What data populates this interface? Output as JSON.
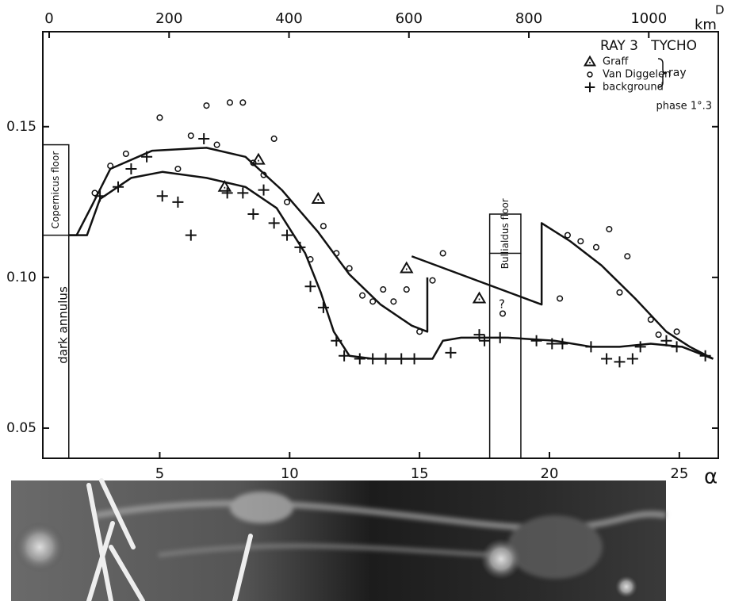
{
  "chart_data": {
    "type": "scatter",
    "title": "RAY 3   TYCHO",
    "subtitle": "phase 1°.3",
    "xlabel": "α",
    "x2label": "km",
    "x2symbol": "D",
    "xlim": [
      0.5,
      26.5
    ],
    "xticks": [
      5,
      10,
      15,
      20,
      25
    ],
    "x2lim": [
      -10.6,
      1116
    ],
    "x2ticks": [
      0,
      200,
      400,
      600,
      800,
      1000
    ],
    "ylim": [
      0.04,
      0.1815
    ],
    "yticks": [
      0.05,
      {
        "value": 0.1,
        "label": "0.10"
      },
      0.15
    ],
    "legend_group_label": "ray",
    "series": [
      {
        "name": "Graff",
        "marker": "triangle",
        "color": "#111",
        "x": [
          7.5,
          8.8,
          11.1,
          14.5,
          17.3
        ],
        "values": [
          0.13,
          0.139,
          0.126,
          0.103,
          0.093
        ]
      },
      {
        "name": "Van Diggelen",
        "marker": "circle",
        "color": "#111",
        "x": [
          2.5,
          3.1,
          3.7,
          5.0,
          5.7,
          6.2,
          6.8,
          7.2,
          7.7,
          8.2,
          8.6,
          9.0,
          9.4,
          9.9,
          10.8,
          11.3,
          11.8,
          12.3,
          12.8,
          13.2,
          13.6,
          14.0,
          14.5,
          15.0,
          15.5,
          15.9,
          18.2,
          20.4,
          20.7,
          21.2,
          21.8,
          22.3,
          22.7,
          23.0,
          23.9,
          24.2,
          24.9
        ],
        "values": [
          0.128,
          0.137,
          0.141,
          0.153,
          0.136,
          0.147,
          0.157,
          0.144,
          0.158,
          0.158,
          0.138,
          0.134,
          0.146,
          0.125,
          0.106,
          0.117,
          0.108,
          0.103,
          0.094,
          0.092,
          0.096,
          0.092,
          0.096,
          0.082,
          0.099,
          0.108,
          0.088,
          0.093,
          0.114,
          0.112,
          0.11,
          0.116,
          0.095,
          0.107,
          0.086,
          0.081,
          0.082
        ]
      },
      {
        "name": "background",
        "marker": "plus",
        "color": "#111",
        "x": [
          2.7,
          3.4,
          3.9,
          4.5,
          5.1,
          5.7,
          6.2,
          6.7,
          7.6,
          8.2,
          8.6,
          9.0,
          9.4,
          9.9,
          10.4,
          10.8,
          11.3,
          11.8,
          12.1,
          12.7,
          13.2,
          13.7,
          14.3,
          14.8,
          16.2,
          17.3,
          17.5,
          18.1,
          19.5,
          20.1,
          20.5,
          21.6,
          22.2,
          22.7,
          23.2,
          23.5,
          24.5,
          24.9,
          26.0
        ],
        "values": [
          0.127,
          0.13,
          0.136,
          0.14,
          0.127,
          0.125,
          0.114,
          0.146,
          0.128,
          0.128,
          0.121,
          0.129,
          0.118,
          0.114,
          0.11,
          0.097,
          0.09,
          0.079,
          0.074,
          0.073,
          0.073,
          0.073,
          0.073,
          0.073,
          0.075,
          0.081,
          0.079,
          0.08,
          0.079,
          0.078,
          0.078,
          0.077,
          0.073,
          0.072,
          0.073,
          0.077,
          0.079,
          0.077,
          0.074
        ]
      }
    ],
    "curves": [
      {
        "x": [
          1.5,
          2.2,
          2.7,
          3.9,
          5.1,
          6.8,
          8.3,
          9.5,
          10.6,
          11.2,
          11.7,
          12.3,
          13.2,
          14.7,
          15.5,
          15.9,
          16.6,
          18.4,
          20.2,
          21.6,
          22.7,
          23.9,
          25.1,
          26.3
        ],
        "values": [
          0.114,
          0.114,
          0.126,
          0.133,
          0.135,
          0.133,
          0.13,
          0.123,
          0.108,
          0.095,
          0.082,
          0.074,
          0.073,
          0.073,
          0.073,
          0.079,
          0.08,
          0.08,
          0.079,
          0.077,
          0.077,
          0.078,
          0.077,
          0.073
        ]
      },
      {
        "x": [
          1.5,
          1.8,
          2.4,
          3.1,
          4.7,
          6.8,
          8.3,
          9.7,
          11.1,
          12.3,
          13.5,
          14.7,
          15.3,
          15.3
        ],
        "values": [
          0.114,
          0.114,
          0.124,
          0.136,
          0.142,
          0.143,
          0.14,
          0.129,
          0.115,
          0.101,
          0.091,
          0.084,
          0.082,
          0.1
        ]
      },
      {
        "x": [
          14.7,
          19.7,
          19.7,
          20.8,
          22.0,
          23.3,
          24.5,
          25.4,
          26.3
        ],
        "values": [
          0.107,
          0.091,
          0.118,
          0.112,
          0.104,
          0.093,
          0.082,
          0.077,
          0.073
        ]
      }
    ],
    "regions": [
      {
        "label": "Copernicus floor",
        "x": [
          0.5,
          1.5
        ],
        "y": [
          0.114,
          0.144
        ]
      },
      {
        "label": "Bullialdus floor",
        "x": [
          17.7,
          18.9
        ],
        "y": [
          0.108,
          0.121
        ]
      }
    ],
    "annotations": [
      "dark annulus",
      "?"
    ]
  }
}
